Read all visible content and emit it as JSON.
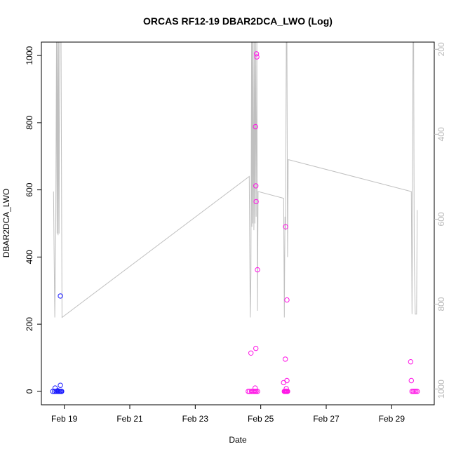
{
  "chart_data": {
    "type": "scatter",
    "title": "ORCAS RF12-19 DBAR2DCA_LWO (Log)",
    "xlabel": "Date",
    "ylabel": "DBAR2DCA_LWO",
    "x_ticks": [
      "Feb 19",
      "Feb 21",
      "Feb 23",
      "Feb 25",
      "Feb 27",
      "Feb 29"
    ],
    "x_tick_days": [
      19,
      21,
      23,
      25,
      27,
      29
    ],
    "xlim_days": [
      18.3,
      30.3
    ],
    "ylim": [
      -40,
      1040
    ],
    "y_ticks": [
      0,
      200,
      400,
      600,
      800,
      1000
    ],
    "right_axis": {
      "ticks": [
        200,
        400,
        600,
        800,
        1000
      ],
      "ylim_top": 183,
      "ylim_bottom": 1037,
      "color": "#b8b8b8"
    },
    "grey_line": {
      "color": "#c0c0c0",
      "points": [
        [
          18.67,
          595
        ],
        [
          18.69,
          400
        ],
        [
          18.71,
          220
        ],
        [
          18.72,
          300
        ],
        [
          18.74,
          500
        ],
        [
          18.76,
          1045
        ],
        [
          18.78,
          470
        ],
        [
          18.79,
          1045
        ],
        [
          18.81,
          465
        ],
        [
          18.82,
          1045
        ],
        [
          18.84,
          470
        ],
        [
          18.86,
          1045
        ],
        [
          18.9,
          1045
        ],
        [
          18.93,
          220
        ],
        [
          24.65,
          640
        ],
        [
          24.68,
          220
        ],
        [
          24.7,
          350
        ],
        [
          24.72,
          1045
        ],
        [
          24.73,
          490
        ],
        [
          24.74,
          1045
        ],
        [
          24.76,
          500
        ],
        [
          24.77,
          1045
        ],
        [
          24.79,
          480
        ],
        [
          24.81,
          1045
        ],
        [
          24.82,
          500
        ],
        [
          24.84,
          1045
        ],
        [
          24.86,
          520
        ],
        [
          24.88,
          1045
        ],
        [
          24.9,
          240
        ],
        [
          24.92,
          595
        ],
        [
          25.7,
          575
        ],
        [
          25.72,
          220
        ],
        [
          25.74,
          520
        ],
        [
          25.76,
          480
        ],
        [
          25.78,
          1045
        ],
        [
          25.8,
          1045
        ],
        [
          25.82,
          400
        ],
        [
          25.84,
          690
        ],
        [
          29.6,
          595
        ],
        [
          29.62,
          230
        ],
        [
          29.63,
          400
        ],
        [
          29.65,
          1045
        ],
        [
          29.67,
          1045
        ],
        [
          29.69,
          400
        ],
        [
          29.72,
          230
        ],
        [
          29.76,
          230
        ],
        [
          29.78,
          540
        ]
      ]
    },
    "series": [
      {
        "color": "#1c1cff",
        "points": [
          [
            18.65,
            0
          ],
          [
            18.7,
            0
          ],
          [
            18.72,
            10
          ],
          [
            18.75,
            0
          ],
          [
            18.78,
            0
          ],
          [
            18.8,
            2
          ],
          [
            18.82,
            0
          ],
          [
            18.85,
            0
          ],
          [
            18.87,
            0
          ],
          [
            18.88,
            18
          ],
          [
            18.9,
            0
          ],
          [
            18.92,
            0
          ],
          [
            18.88,
            284
          ]
        ]
      },
      {
        "color": "#ff14e6",
        "points": [
          [
            24.62,
            0
          ],
          [
            24.66,
            0
          ],
          [
            24.7,
            114
          ],
          [
            24.72,
            0
          ],
          [
            24.76,
            0
          ],
          [
            24.8,
            0
          ],
          [
            24.83,
            0
          ],
          [
            24.85,
            128
          ],
          [
            24.83,
            10
          ],
          [
            24.86,
            0
          ],
          [
            24.9,
            0
          ],
          [
            24.84,
            788
          ],
          [
            24.85,
            612
          ],
          [
            24.86,
            565
          ],
          [
            24.87,
            1005
          ],
          [
            24.88,
            996
          ],
          [
            24.9,
            362
          ],
          [
            25.7,
            26
          ],
          [
            25.72,
            0
          ],
          [
            25.74,
            0
          ],
          [
            25.76,
            0
          ],
          [
            25.78,
            0
          ],
          [
            25.8,
            0
          ],
          [
            25.82,
            0
          ],
          [
            25.75,
            96
          ],
          [
            25.76,
            490
          ],
          [
            25.8,
            272
          ],
          [
            25.8,
            32
          ],
          [
            25.78,
            8
          ],
          [
            29.58,
            88
          ],
          [
            29.6,
            32
          ],
          [
            29.62,
            0
          ],
          [
            29.66,
            0
          ],
          [
            29.7,
            0
          ],
          [
            29.74,
            0
          ],
          [
            29.78,
            0
          ]
        ]
      }
    ]
  }
}
